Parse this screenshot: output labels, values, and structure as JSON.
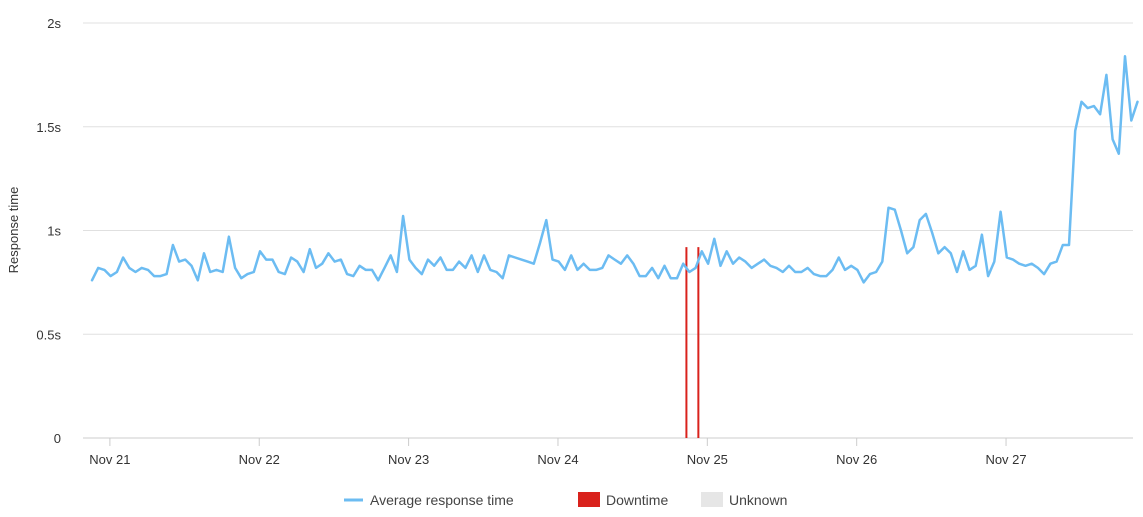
{
  "colors": {
    "line": "#6cbcf2",
    "downtime": "#d9221c",
    "unknown": "#e6e6e6",
    "grid": "#e0e0e0"
  },
  "chart_data": {
    "type": "line",
    "ylabel": "Response time",
    "ylim": [
      0,
      2
    ],
    "y_ticks": [
      {
        "value": 0,
        "label": "0"
      },
      {
        "value": 0.5,
        "label": "0.5s"
      },
      {
        "value": 1,
        "label": "1s"
      },
      {
        "value": 1.5,
        "label": "1.5s"
      },
      {
        "value": 2,
        "label": "2s"
      }
    ],
    "xlim": [
      20.82,
      27.85
    ],
    "x_ticks": [
      {
        "value": 21,
        "label": "Nov 21"
      },
      {
        "value": 22,
        "label": "Nov 22"
      },
      {
        "value": 23,
        "label": "Nov 23"
      },
      {
        "value": 24,
        "label": "Nov 24"
      },
      {
        "value": 25,
        "label": "Nov 25"
      },
      {
        "value": 26,
        "label": "Nov 26"
      },
      {
        "value": 27,
        "label": "Nov 27"
      }
    ],
    "grid": true,
    "legend_position": "bottom-center",
    "legend": [
      {
        "label": "Average response time",
        "kind": "line",
        "color_key": "line"
      },
      {
        "label": "Downtime",
        "kind": "box",
        "color_key": "downtime"
      },
      {
        "label": "Unknown",
        "kind": "box",
        "color_key": "unknown"
      }
    ],
    "downtime_days": [
      24.86,
      24.94
    ],
    "series": [
      {
        "name": "Average response time",
        "x_start_day": 20.88,
        "x_step_hours": 1,
        "values": [
          0.76,
          0.82,
          0.81,
          0.78,
          0.8,
          0.87,
          0.82,
          0.8,
          0.82,
          0.81,
          0.78,
          0.78,
          0.79,
          0.93,
          0.85,
          0.86,
          0.83,
          0.76,
          0.89,
          0.8,
          0.81,
          0.8,
          0.97,
          0.82,
          0.77,
          0.79,
          0.8,
          0.9,
          0.86,
          0.86,
          0.8,
          0.79,
          0.87,
          0.85,
          0.8,
          0.91,
          0.82,
          0.84,
          0.89,
          0.85,
          0.86,
          0.79,
          0.78,
          0.83,
          0.81,
          0.81,
          0.76,
          0.82,
          0.88,
          0.8,
          1.07,
          0.86,
          0.82,
          0.79,
          0.86,
          0.83,
          0.87,
          0.81,
          0.81,
          0.85,
          0.82,
          0.88,
          0.8,
          0.88,
          0.81,
          0.8,
          0.77,
          0.88,
          0.87,
          0.86,
          0.85,
          0.84,
          0.94,
          1.05,
          0.86,
          0.85,
          0.81,
          0.88,
          0.81,
          0.84,
          0.81,
          0.81,
          0.82,
          0.88,
          0.86,
          0.84,
          0.88,
          0.84,
          0.78,
          0.78,
          0.82,
          0.77,
          0.83,
          0.77,
          0.77,
          0.84,
          0.8,
          0.82,
          0.9,
          0.84,
          0.96,
          0.83,
          0.9,
          0.84,
          0.87,
          0.85,
          0.82,
          0.84,
          0.86,
          0.83,
          0.82,
          0.8,
          0.83,
          0.8,
          0.8,
          0.82,
          0.79,
          0.78,
          0.78,
          0.81,
          0.87,
          0.81,
          0.83,
          0.81,
          0.75,
          0.79,
          0.8,
          0.85,
          1.11,
          1.1,
          1.0,
          0.89,
          0.92,
          1.05,
          1.08,
          0.99,
          0.89,
          0.92,
          0.89,
          0.8,
          0.9,
          0.81,
          0.83,
          0.98,
          0.78,
          0.85,
          1.09,
          0.87,
          0.86,
          0.84,
          0.83,
          0.84,
          0.82,
          0.79,
          0.84,
          0.85,
          0.93,
          0.93,
          1.48,
          1.62,
          1.59,
          1.6,
          1.56,
          1.75,
          1.44,
          1.37,
          1.84,
          1.53,
          1.62
        ]
      }
    ]
  }
}
